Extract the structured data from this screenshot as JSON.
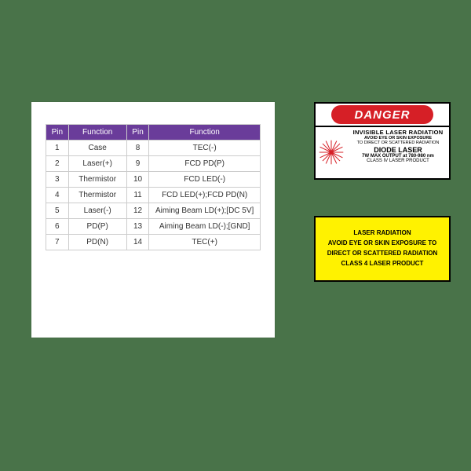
{
  "table": {
    "header_bg": "#6a3c9a",
    "header_color": "#ffffff",
    "border_color": "#cccccc",
    "columns": [
      "Pin",
      "Function",
      "Pin",
      "Function"
    ],
    "rows": [
      [
        "1",
        "Case",
        "8",
        "TEC(-)"
      ],
      [
        "2",
        "Laser(+)",
        "9",
        "FCD PD(P)"
      ],
      [
        "3",
        "Thermistor",
        "10",
        "FCD LED(-)"
      ],
      [
        "4",
        "Thermistor",
        "11",
        "FCD LED(+);FCD PD(N)"
      ],
      [
        "5",
        "Laser(-)",
        "12",
        "Aiming Beam LD(+);[DC 5V]"
      ],
      [
        "6",
        "PD(P)",
        "13",
        "Aiming Beam LD(-);[GND]"
      ],
      [
        "7",
        "PD(N)",
        "14",
        "TEC(+)"
      ]
    ]
  },
  "danger": {
    "header": "DANGER",
    "header_bg": "#d61f26",
    "line1": "INVISIBLE LASER RADIATION",
    "line2": "AVOID EYE OR SKIN EXPOSURE",
    "line3": "TO DIRECT OR SCATTERED RADIATION",
    "line4": "DIODE LASER",
    "line5": "7W MAX OUTPUT at 780-980 nm",
    "line6": "CLASS IV LASER PRODUCT",
    "starburst_color": "#d61f26"
  },
  "yellow": {
    "bg": "#fff200",
    "line1": "LASER RADIATION",
    "line2": "AVOID EYE OR SKIN EXPOSURE TO",
    "line3": "DIRECT OR SCATTERED RADIATION",
    "line4": "CLASS 4 LASER PRODUCT"
  },
  "page_bg": "#497349"
}
